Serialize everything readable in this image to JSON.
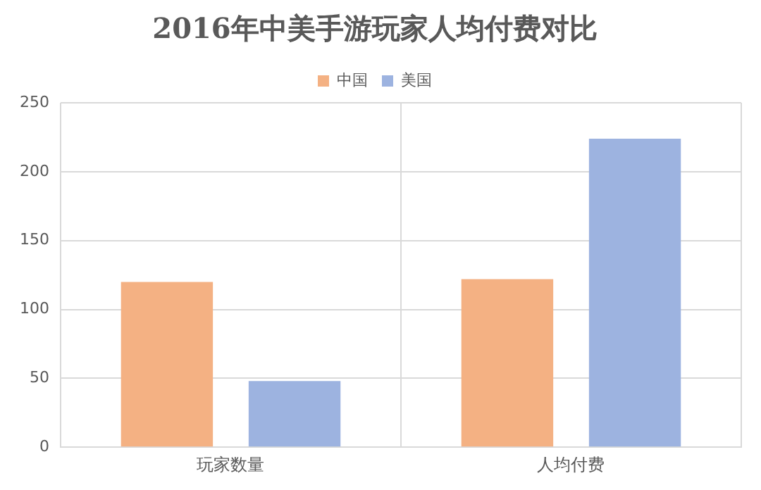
{
  "chart_data": {
    "type": "bar",
    "title": "2016年中美手游玩家人均付费对比",
    "categories": [
      "玩家数量",
      "人均付费"
    ],
    "series": [
      {
        "name": "中国",
        "color": "#f4b183",
        "values": [
          120,
          122
        ]
      },
      {
        "name": "美国",
        "color": "#9db3e0",
        "values": [
          48,
          224
        ]
      }
    ],
    "ylim": [
      0,
      250
    ],
    "yticks": [
      0,
      50,
      100,
      150,
      200,
      250
    ],
    "grid": true,
    "legend": "top"
  }
}
